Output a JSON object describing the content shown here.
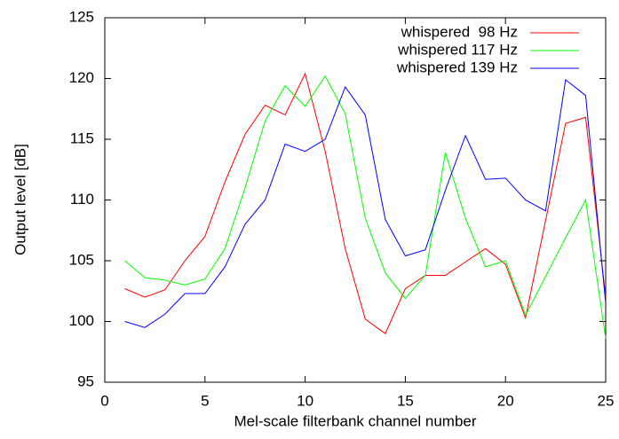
{
  "chart_data": {
    "type": "line",
    "xlabel": "Mel-scale filterbank channel number",
    "ylabel": "Output level [dB]",
    "x": [
      1,
      2,
      3,
      4,
      5,
      6,
      7,
      8,
      9,
      10,
      11,
      12,
      13,
      14,
      15,
      16,
      17,
      18,
      19,
      20,
      21,
      22,
      23,
      24,
      25
    ],
    "series": [
      {
        "name": "whispered  98 Hz",
        "color": "#ff0000",
        "values": [
          102.7,
          102.0,
          102.6,
          105.0,
          107.0,
          111.5,
          115.4,
          117.8,
          117.0,
          120.4,
          114.0,
          106.0,
          100.2,
          99.0,
          102.7,
          103.8,
          103.8,
          104.9,
          106.0,
          104.7,
          100.3,
          108.3,
          116.3,
          116.8,
          102.0
        ]
      },
      {
        "name": "whispered 117 Hz",
        "color": "#00ff00",
        "values": [
          105.0,
          103.6,
          103.4,
          103.0,
          103.5,
          106.0,
          111.0,
          116.5,
          119.4,
          117.7,
          120.2,
          117.1,
          108.5,
          104.0,
          101.9,
          103.8,
          113.9,
          108.5,
          104.5,
          105.0,
          100.5,
          103.7,
          106.9,
          110.0,
          98.6
        ]
      },
      {
        "name": "whispered 139 Hz",
        "color": "#0000ff",
        "values": [
          100.0,
          99.5,
          100.6,
          102.3,
          102.3,
          104.5,
          108.0,
          110.0,
          114.6,
          114.0,
          115.0,
          119.3,
          117.0,
          108.4,
          105.4,
          105.9,
          110.8,
          115.3,
          111.7,
          111.8,
          110.0,
          109.1,
          119.9,
          118.6,
          101.5
        ]
      }
    ],
    "xlim": [
      0,
      25
    ],
    "xticks": [
      0,
      5,
      10,
      15,
      20,
      25
    ],
    "ylim": [
      95,
      125
    ],
    "yticks": [
      95,
      100,
      105,
      110,
      115,
      120,
      125
    ],
    "legend": "top-right"
  }
}
